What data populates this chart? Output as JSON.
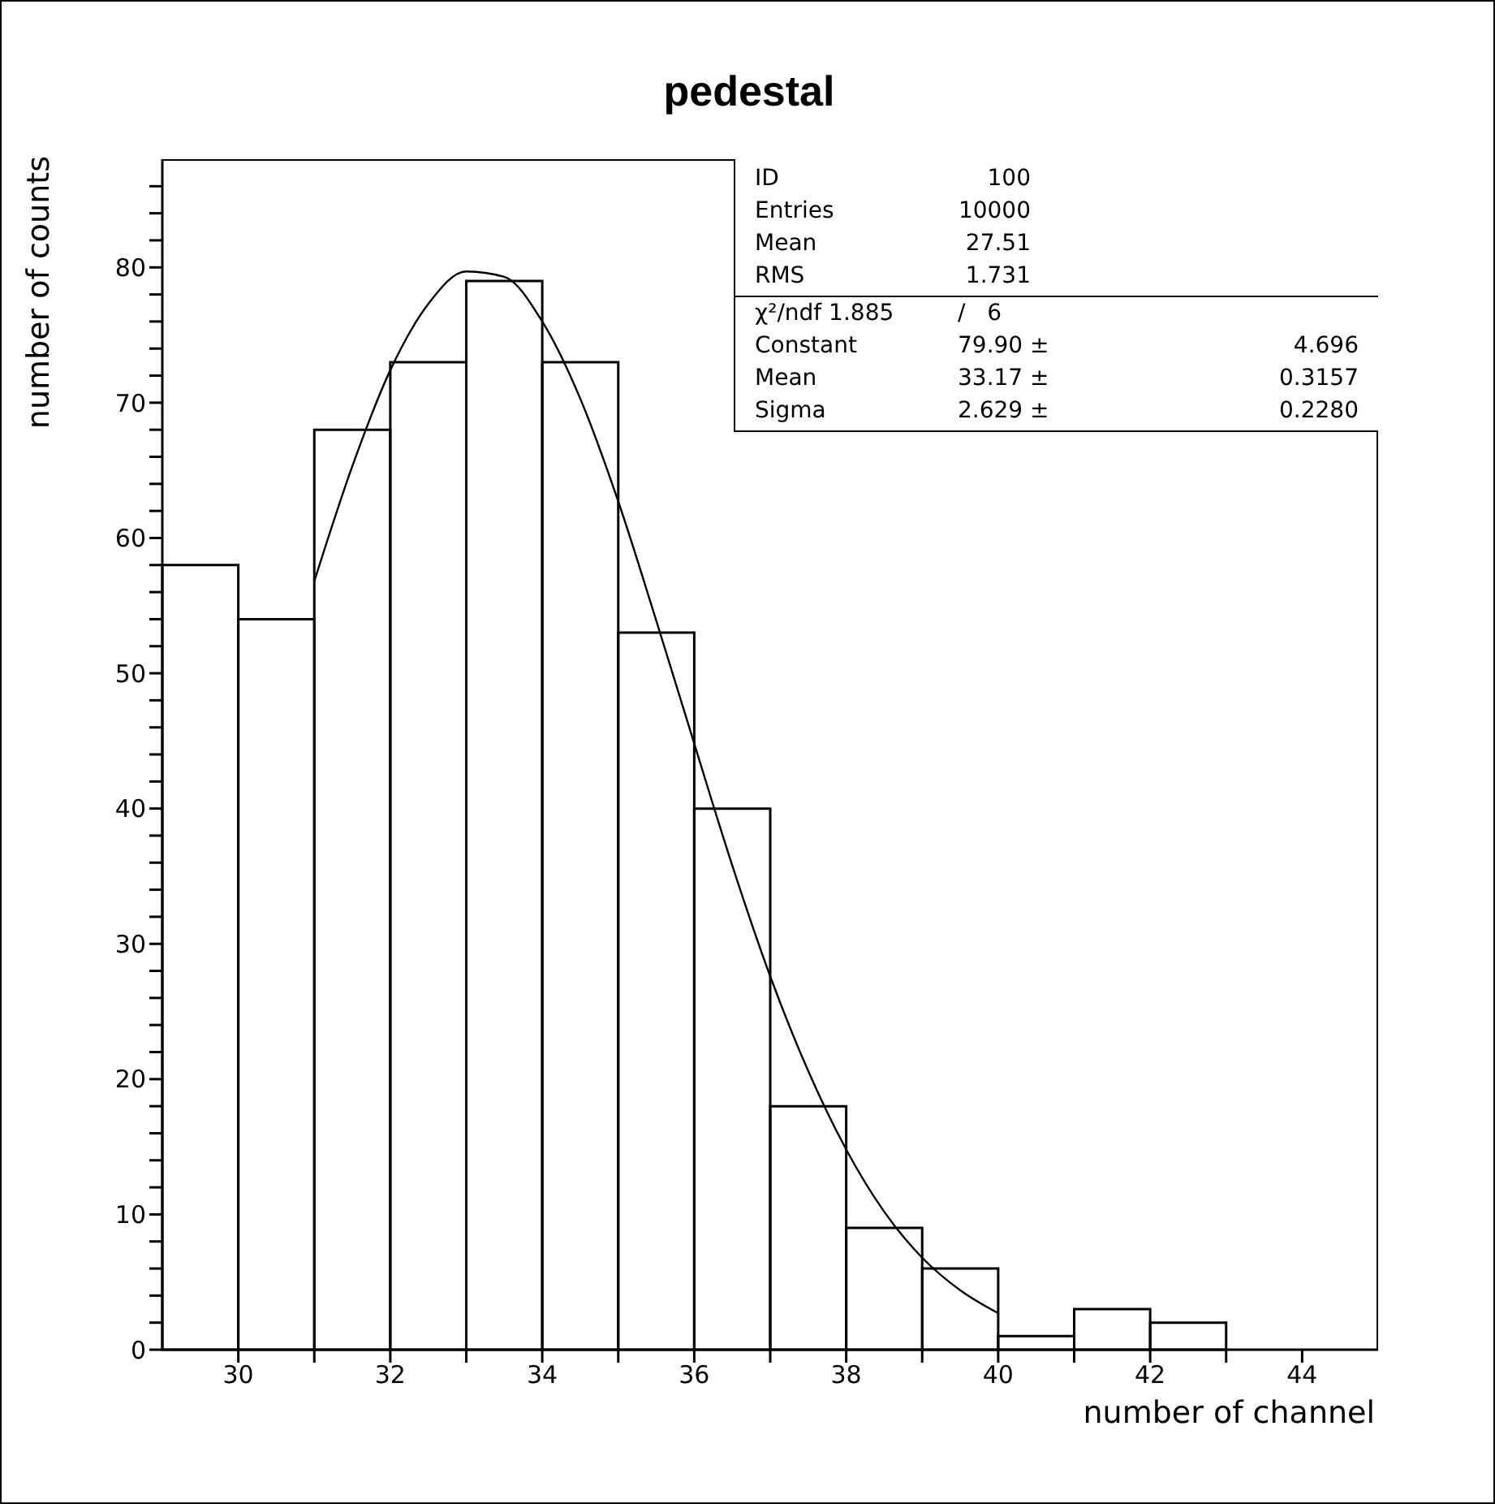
{
  "chart_data": {
    "type": "histogram",
    "title": "pedestal",
    "xlabel": "number of channel",
    "ylabel": "number of counts",
    "bins": [
      29,
      30,
      31,
      32,
      33,
      34,
      35,
      36,
      37,
      38,
      39,
      40,
      41,
      42,
      43
    ],
    "values": [
      58,
      54,
      68,
      73,
      79,
      73,
      53,
      40,
      18,
      9,
      6,
      1,
      3,
      2
    ],
    "color": "#000000",
    "series": [
      {
        "type": "line",
        "color": "#000000",
        "x": [
          31,
          31.5,
          32,
          32.5,
          33,
          33.5,
          34,
          34.5,
          35,
          35.5,
          36,
          36.5,
          37,
          37.5,
          38,
          38.5,
          39,
          39.5,
          40
        ],
        "values": [
          56.8,
          65.3,
          72.4,
          77.3,
          79.7,
          79.3,
          76.0,
          70.3,
          62.7,
          53.9,
          44.8,
          35.8,
          27.6,
          20.6,
          14.8,
          10.2,
          6.8,
          4.4,
          2.7
        ]
      }
    ],
    "xlim": [
      29,
      45
    ],
    "xticks": [
      30,
      {
        "value": 31,
        "label": null
      },
      32,
      {
        "value": 33,
        "label": null
      },
      34,
      {
        "value": 35,
        "label": null
      },
      36,
      {
        "value": 37,
        "label": null
      },
      38,
      {
        "value": 39,
        "label": null
      },
      40,
      {
        "value": 41,
        "label": null
      },
      42,
      {
        "value": 43,
        "label": null
      },
      44
    ],
    "ylim": [
      0,
      88
    ],
    "yticks": [
      0,
      {
        "value": 2,
        "label": null
      },
      {
        "value": 4,
        "label": null
      },
      {
        "value": 6,
        "label": null
      },
      {
        "value": 8,
        "label": null
      },
      10,
      {
        "value": 12,
        "label": null
      },
      {
        "value": 14,
        "label": null
      },
      {
        "value": 16,
        "label": null
      },
      {
        "value": 18,
        "label": null
      },
      20,
      {
        "value": 22,
        "label": null
      },
      {
        "value": 24,
        "label": null
      },
      {
        "value": 26,
        "label": null
      },
      {
        "value": 28,
        "label": null
      },
      30,
      {
        "value": 32,
        "label": null
      },
      {
        "value": 34,
        "label": null
      },
      {
        "value": 36,
        "label": null
      },
      {
        "value": 38,
        "label": null
      },
      40,
      {
        "value": 42,
        "label": null
      },
      {
        "value": 44,
        "label": null
      },
      {
        "value": 46,
        "label": null
      },
      {
        "value": 48,
        "label": null
      },
      50,
      {
        "value": 52,
        "label": null
      },
      {
        "value": 54,
        "label": null
      },
      {
        "value": 56,
        "label": null
      },
      {
        "value": 58,
        "label": null
      },
      60,
      {
        "value": 62,
        "label": null
      },
      {
        "value": 64,
        "label": null
      },
      {
        "value": 66,
        "label": null
      },
      {
        "value": 68,
        "label": null
      },
      70,
      {
        "value": 72,
        "label": null
      },
      {
        "value": 74,
        "label": null
      },
      {
        "value": 76,
        "label": null
      },
      {
        "value": 78,
        "label": null
      },
      80,
      {
        "value": 82,
        "label": null
      },
      {
        "value": 84,
        "label": null
      },
      {
        "value": 86,
        "label": null
      }
    ],
    "grid": false,
    "marker": "none",
    "annotations": [
      "ID",
      "100",
      "Entries",
      "10000",
      "Mean",
      "27.51",
      "RMS",
      "1.731",
      "χ²/ndf 1.885",
      "/   6",
      "Constant",
      "79.90 ±",
      "4.696",
      "Mean",
      "33.17 ±",
      "0.3157",
      "Sigma",
      "2.629 ±",
      "0.2280"
    ]
  }
}
